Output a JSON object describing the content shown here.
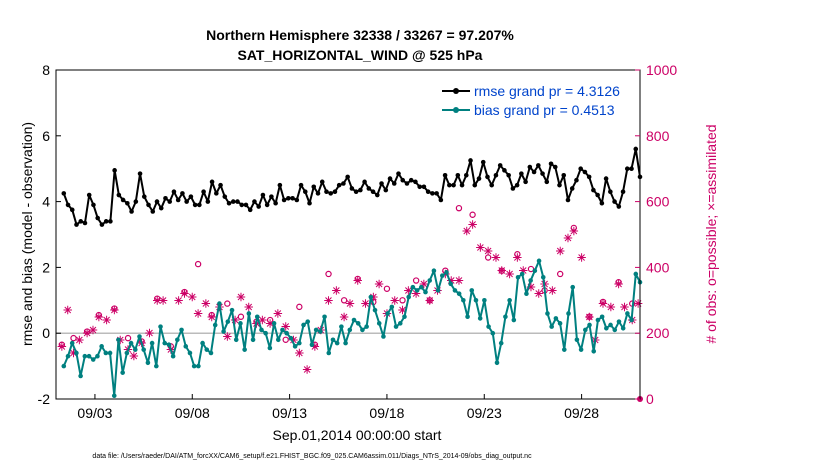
{
  "chart_data": {
    "type": "line",
    "title_line1": "Northern Hemisphere 32338 / 33267 = 97.207%",
    "title_line2": "SAT_HORIZONTAL_WIND @ 525 hPa",
    "xlabel": "Sep.01,2014 00:00:00 start",
    "ylabel_left": "rmse and bias (model - observation)",
    "ylabel_right": "# of obs: o=possible; ×=assimilated",
    "footer": "data file: /Users/raeder/DAI/ATM_forcXX/CAM6_setup/f.e21.FHIST_BGC.f09_025.CAM6assim.011/Diags_NTrS_2014-09/obs_diag_output.nc",
    "x_ticks": [
      "09/03",
      "09/08",
      "09/13",
      "09/18",
      "09/23",
      "09/28"
    ],
    "x_tick_days": [
      3,
      8,
      13,
      18,
      23,
      28
    ],
    "xlim": [
      1.0,
      31.0
    ],
    "ylim_left": [
      -2,
      8
    ],
    "y_ticks_left": [
      -2,
      0,
      2,
      4,
      6,
      8
    ],
    "ylim_right": [
      0,
      1000
    ],
    "y_ticks_right": [
      0,
      200,
      400,
      600,
      800,
      1000
    ],
    "grid": false,
    "legend_position": "top-right",
    "colors": {
      "rmse": "#000000",
      "bias": "#008080",
      "obs": "#cc0066",
      "zero": "#bbbbbb",
      "legend_text": "#0044cc"
    },
    "series": [
      {
        "name": "rmse grand pr = 4.3126",
        "key": "rmse",
        "values": [
          4.25,
          3.9,
          3.75,
          3.3,
          3.4,
          3.35,
          4.2,
          3.9,
          3.5,
          3.3,
          3.4,
          3.4,
          4.95,
          4.2,
          4.05,
          3.95,
          3.7,
          4.0,
          4.85,
          4.15,
          3.9,
          3.7,
          4.0,
          3.8,
          4.1,
          4.0,
          4.3,
          4.05,
          4.25,
          4.0,
          4.15,
          3.9,
          3.9,
          4.3,
          4.0,
          4.6,
          4.25,
          4.5,
          4.15,
          3.95,
          4.0,
          4.0,
          3.9,
          3.9,
          3.75,
          4.0,
          3.85,
          4.2,
          3.9,
          4.15,
          3.95,
          4.5,
          4.05,
          4.1,
          4.1,
          4.05,
          4.5,
          4.3,
          3.95,
          4.45,
          4.25,
          4.6,
          4.3,
          4.25,
          4.3,
          4.5,
          4.55,
          4.75,
          4.4,
          4.3,
          4.35,
          4.6,
          4.4,
          4.3,
          4.2,
          4.55,
          4.35,
          4.7,
          4.55,
          4.85,
          4.65,
          4.55,
          4.65,
          4.6,
          4.45,
          4.45,
          4.3,
          4.25,
          4.25,
          4.05,
          4.8,
          4.5,
          4.5,
          4.8,
          4.5,
          4.8,
          5.25,
          4.5,
          4.7,
          5.2,
          4.75,
          4.5,
          4.8,
          5.1,
          4.95,
          4.8,
          4.4,
          4.5,
          4.85,
          4.6,
          5.05,
          4.9,
          5.1,
          4.85,
          4.6,
          5.15,
          5.05,
          4.5,
          4.8,
          4.05,
          4.4,
          4.65,
          5.0,
          4.9,
          4.75,
          4.35,
          4.2,
          3.95,
          4.7,
          4.3,
          4.0,
          3.85,
          4.3,
          5.0,
          5.0,
          5.6,
          4.75
        ],
        "marker": "dot"
      },
      {
        "name": "bias grand pr = 0.4513",
        "key": "bias",
        "values": [
          -1.0,
          -0.7,
          -0.3,
          -0.6,
          -1.3,
          -0.7,
          -0.7,
          -0.8,
          -0.7,
          -0.4,
          -0.6,
          -0.6,
          -1.9,
          -0.2,
          -1.2,
          -0.6,
          -0.3,
          -0.5,
          -0.1,
          -0.5,
          -0.9,
          -0.3,
          -1.0,
          0.2,
          -0.3,
          -0.35,
          -0.7,
          -0.2,
          0.1,
          -0.4,
          -0.6,
          -1.0,
          -1.0,
          -0.3,
          -0.5,
          -0.6,
          0.25,
          0.9,
          0.05,
          0.35,
          0.7,
          -0.2,
          0.3,
          -0.5,
          0.6,
          -0.2,
          0.5,
          0.1,
          0.0,
          -0.45,
          0.3,
          -0.2,
          0.1,
          0.0,
          -0.15,
          -0.4,
          -0.3,
          0.25,
          0.35,
          -0.35,
          0.1,
          0.05,
          0.5,
          -0.6,
          -0.2,
          -0.3,
          0.2,
          -0.3,
          0.1,
          0.4,
          0.3,
          0.1,
          0.2,
          1.1,
          0.7,
          0.3,
          -0.1,
          0.6,
          0.8,
          0.2,
          0.3,
          0.5,
          1.1,
          1.4,
          1.3,
          1.4,
          1.25,
          1.6,
          1.9,
          1.3,
          1.75,
          1.85,
          1.5,
          1.3,
          1.2,
          1.0,
          0.5,
          1.3,
          1.0,
          0.45,
          1.0,
          0.2,
          0.0,
          -0.9,
          -0.3,
          0.5,
          1.0,
          0.4,
          1.7,
          1.8,
          1.2,
          1.6,
          1.9,
          2.2,
          1.7,
          0.6,
          0.2,
          0.45,
          0.3,
          -0.5,
          0.6,
          1.4,
          -0.2,
          -0.5,
          0.1,
          0.25,
          -0.55,
          0.4,
          0.5,
          0.15,
          0.25,
          0.1,
          0.35,
          0.15,
          0.6,
          0.4,
          1.8,
          1.55
        ],
        "marker": "dot"
      }
    ],
    "obs_assimilated": {
      "x": [
        1.3,
        1.6,
        1.9,
        2.2,
        2.6,
        2.9,
        3.2,
        3.6,
        4.0,
        4.3,
        4.7,
        5.0,
        5.4,
        5.8,
        6.2,
        6.5,
        6.9,
        7.3,
        7.6,
        8.0,
        8.3,
        8.7,
        9.0,
        9.4,
        9.8,
        10.2,
        10.5,
        10.9,
        11.3,
        11.6,
        12.0,
        12.4,
        12.8,
        13.2,
        13.5,
        13.9,
        14.3,
        14.6,
        15.0,
        15.4,
        15.8,
        16.1,
        16.5,
        16.9,
        17.3,
        17.6,
        18.0,
        18.4,
        18.8,
        19.1,
        19.5,
        19.9,
        20.2,
        20.6,
        21.0,
        21.3,
        21.7,
        22.1,
        22.4,
        22.8,
        23.2,
        23.6,
        23.9,
        24.3,
        24.7,
        25.0,
        25.4,
        25.8,
        26.1,
        26.5,
        26.9,
        27.3,
        27.6,
        28.0,
        28.4,
        28.7,
        29.1,
        29.5,
        29.9,
        30.2,
        30.6,
        30.9
      ],
      "y": [
        160,
        270,
        140,
        180,
        200,
        210,
        250,
        240,
        270,
        180,
        150,
        130,
        170,
        200,
        300,
        300,
        150,
        300,
        320,
        310,
        260,
        290,
        250,
        280,
        190,
        240,
        310,
        280,
        230,
        240,
        230,
        260,
        220,
        180,
        140,
        90,
        160,
        210,
        300,
        330,
        250,
        290,
        360,
        290,
        310,
        350,
        260,
        300,
        270,
        330,
        320,
        350,
        300,
        330,
        380,
        360,
        360,
        510,
        530,
        460,
        450,
        430,
        390,
        380,
        430,
        390,
        340,
        320,
        350,
        330,
        450,
        490,
        510,
        430,
        250,
        180,
        290,
        280,
        350,
        280,
        240,
        290
      ]
    },
    "obs_possible": {
      "x": [
        1.3,
        1.9,
        2.6,
        3.2,
        4.0,
        4.7,
        5.4,
        6.2,
        6.9,
        7.6,
        8.3,
        9.0,
        9.8,
        10.5,
        11.3,
        12.0,
        12.8,
        13.5,
        14.3,
        15.0,
        15.8,
        16.5,
        17.3,
        18.0,
        18.8,
        19.5,
        20.2,
        21.0,
        21.7,
        22.4,
        23.2,
        23.9,
        24.7,
        25.4,
        26.1,
        26.9,
        27.6,
        28.4,
        29.1,
        29.9,
        30.6
      ],
      "y": [
        165,
        185,
        205,
        255,
        275,
        185,
        175,
        305,
        160,
        325,
        410,
        255,
        290,
        250,
        235,
        240,
        180,
        280,
        165,
        380,
        300,
        365,
        295,
        335,
        300,
        360,
        300,
        390,
        580,
        560,
        430,
        390,
        440,
        395,
        330,
        380,
        520,
        250,
        295,
        355,
        290
      ]
    }
  }
}
